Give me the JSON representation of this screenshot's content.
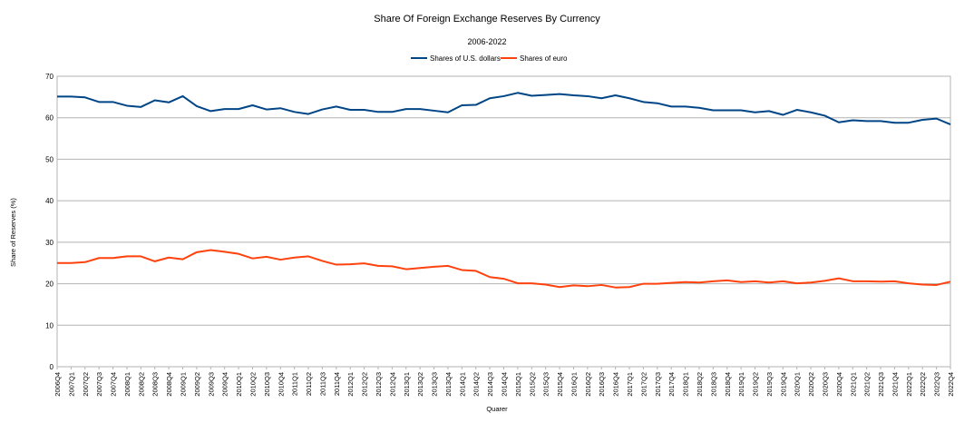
{
  "chart_data": {
    "type": "line",
    "title": "Share Of Foreign Exchange Reserves By Currency",
    "subtitle": "2006-2022",
    "xlabel": "Quarer",
    "ylabel": "Share of Reserves (%)",
    "ylim": [
      0,
      70
    ],
    "yticks": [
      "0",
      "10",
      "20",
      "30",
      "40",
      "50",
      "60",
      "70"
    ],
    "grid": true,
    "legend_position": "top-center",
    "categories": [
      "2006Q4",
      "2007Q1",
      "2007Q2",
      "2007Q3",
      "2007Q4",
      "2008Q1",
      "2008Q2",
      "2008Q3",
      "2008Q4",
      "2009Q1",
      "2009Q2",
      "2009Q3",
      "2009Q4",
      "2010Q1",
      "2010Q2",
      "2010Q3",
      "2010Q4",
      "2011Q1",
      "2011Q2",
      "2011Q3",
      "2011Q4",
      "2012Q1",
      "2012Q2",
      "2012Q3",
      "2012Q4",
      "2013Q1",
      "2013Q2",
      "2013Q3",
      "2013Q4",
      "2014Q1",
      "2014Q2",
      "2014Q3",
      "2014Q4",
      "2015Q1",
      "2015Q2",
      "2015Q3",
      "2015Q4",
      "2016Q1",
      "2016Q2",
      "2016Q3",
      "2016Q4",
      "2017Q1",
      "2017Q2",
      "2017Q3",
      "2017Q4",
      "2018Q1",
      "2018Q2",
      "2018Q3",
      "2018Q4",
      "2019Q1",
      "2019Q2",
      "2019Q3",
      "2019Q4",
      "2020Q1",
      "2020Q2",
      "2020Q3",
      "2020Q4",
      "2021Q1",
      "2021Q2",
      "2021Q3",
      "2021Q4",
      "2022Q1",
      "2022Q2",
      "2022Q3",
      "2022Q4"
    ],
    "series": [
      {
        "name": "Shares of U.S. dollars",
        "color": "#004586",
        "values": [
          65.1,
          65.1,
          64.9,
          63.8,
          63.8,
          62.9,
          62.6,
          64.2,
          63.7,
          65.2,
          62.8,
          61.6,
          62.1,
          62.1,
          63.0,
          62.0,
          62.3,
          61.4,
          60.9,
          62.0,
          62.7,
          61.9,
          61.9,
          61.4,
          61.4,
          62.1,
          62.1,
          61.7,
          61.3,
          63.0,
          63.1,
          64.7,
          65.2,
          66.0,
          65.3,
          65.5,
          65.7,
          65.4,
          65.2,
          64.7,
          65.4,
          64.7,
          63.8,
          63.5,
          62.7,
          62.7,
          62.4,
          61.8,
          61.8,
          61.8,
          61.3,
          61.6,
          60.7,
          61.9,
          61.3,
          60.5,
          58.9,
          59.4,
          59.2,
          59.2,
          58.8,
          58.8,
          59.5,
          59.8,
          58.4
        ]
      },
      {
        "name": "Shares of euro",
        "color": "#ff420e",
        "values": [
          25.0,
          25.0,
          25.2,
          26.2,
          26.2,
          26.6,
          26.6,
          25.4,
          26.3,
          25.9,
          27.6,
          28.1,
          27.7,
          27.2,
          26.1,
          26.5,
          25.8,
          26.3,
          26.6,
          25.5,
          24.6,
          24.7,
          24.9,
          24.3,
          24.2,
          23.5,
          23.8,
          24.1,
          24.3,
          23.3,
          23.1,
          21.6,
          21.2,
          20.1,
          20.1,
          19.8,
          19.2,
          19.6,
          19.4,
          19.7,
          19.1,
          19.2,
          20.0,
          20.0,
          20.2,
          20.4,
          20.3,
          20.6,
          20.8,
          20.4,
          20.6,
          20.3,
          20.6,
          20.1,
          20.3,
          20.7,
          21.3,
          20.6,
          20.6,
          20.5,
          20.6,
          20.1,
          19.8,
          19.7,
          20.5
        ]
      }
    ]
  }
}
